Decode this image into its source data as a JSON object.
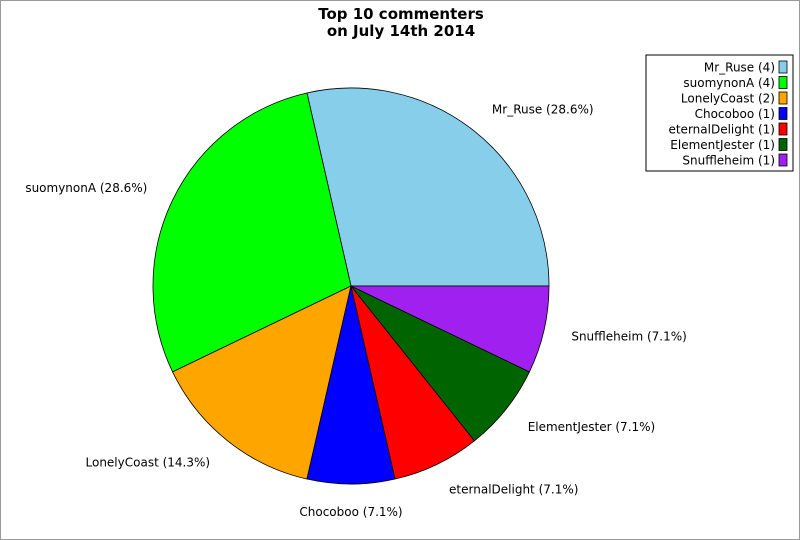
{
  "chart_data": {
    "type": "pie",
    "title": [
      "Top 10 commenters",
      "on July 14th 2014"
    ],
    "start_angle_deg": 0,
    "direction": "counterclockwise",
    "legend_placement": "top-right",
    "slices": [
      {
        "name": "Mr_Ruse",
        "value": 4,
        "percent_label": "Mr_Ruse (28.6%)",
        "legend_label": "Mr_Ruse (4)",
        "color": "#87ceeb"
      },
      {
        "name": "suomynonA",
        "value": 4,
        "percent_label": "suomynonA (28.6%)",
        "legend_label": "suomynonA (4)",
        "color": "#00ff00"
      },
      {
        "name": "LonelyCoast",
        "value": 2,
        "percent_label": "LonelyCoast (14.3%)",
        "legend_label": "LonelyCoast (2)",
        "color": "#ffa500"
      },
      {
        "name": "Chocoboo",
        "value": 1,
        "percent_label": "Chocoboo (7.1%)",
        "legend_label": "Chocoboo (1)",
        "color": "#0000ff"
      },
      {
        "name": "eternalDelight",
        "value": 1,
        "percent_label": "eternalDelight (7.1%)",
        "legend_label": "eternalDelight (1)",
        "color": "#ff0000"
      },
      {
        "name": "ElementJester",
        "value": 1,
        "percent_label": "ElementJester (7.1%)",
        "legend_label": "ElementJester (1)",
        "color": "#006400"
      },
      {
        "name": "Snuffleheim",
        "value": 1,
        "percent_label": "Snuffleheim (7.1%)",
        "legend_label": "Snuffleheim (1)",
        "color": "#a020f0"
      }
    ]
  }
}
